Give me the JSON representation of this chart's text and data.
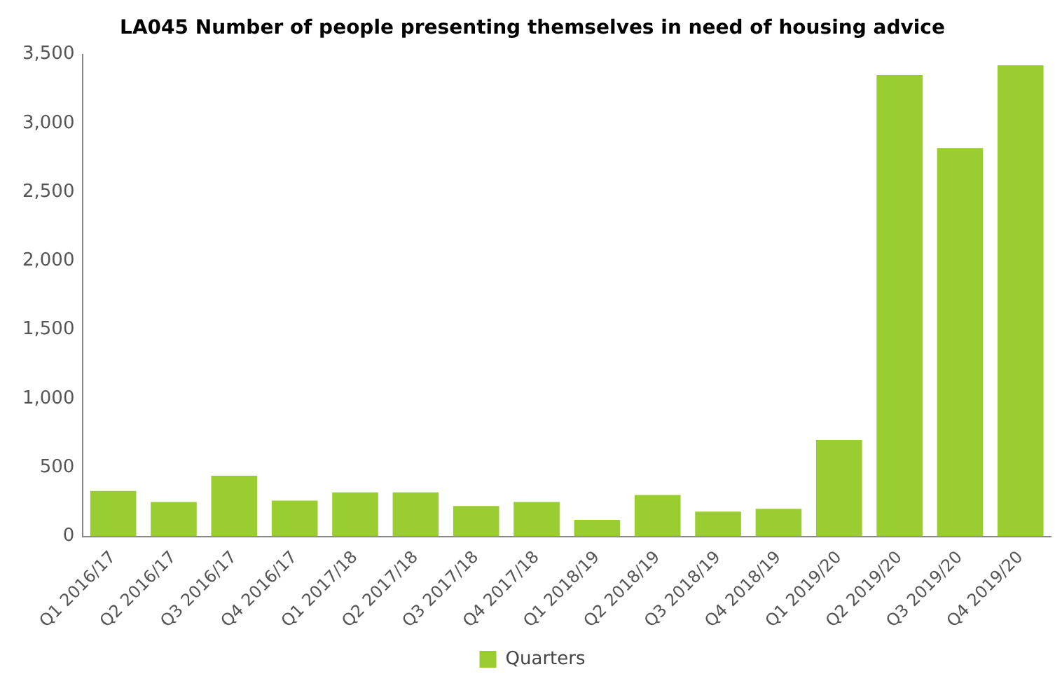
{
  "chart_data": {
    "type": "bar",
    "title": "LA045 Number of people presenting themselves in need of housing advice",
    "categories": [
      "Q1 2016/17",
      "Q2 2016/17",
      "Q3 2016/17",
      "Q4 2016/17",
      "Q1 2017/18",
      "Q2 2017/18",
      "Q3 2017/18",
      "Q4 2017/18",
      "Q1 2018/19",
      "Q2 2018/19",
      "Q3 2018/19",
      "Q4 2018/19",
      "Q1 2019/20",
      "Q2 2019/20",
      "Q3 2019/20",
      "Q4 2019/20"
    ],
    "series": [
      {
        "name": "Quarters",
        "color": "#9acd32",
        "values": [
          330,
          250,
          440,
          260,
          320,
          320,
          220,
          250,
          120,
          300,
          180,
          200,
          700,
          3350,
          2820,
          3420
        ]
      }
    ],
    "ylim": [
      0,
      3500
    ],
    "yticks": [
      0,
      {
        "value": 500,
        "label": "500"
      },
      {
        "value": 1000,
        "label": "1,000"
      },
      {
        "value": 1500,
        "label": "1,500"
      },
      {
        "value": 2000,
        "label": "2,000"
      },
      {
        "value": 2500,
        "label": "2,500"
      },
      {
        "value": 3000,
        "label": "3,000"
      },
      {
        "value": 3500,
        "label": "3,500"
      }
    ],
    "grid": false,
    "legend": "bottom"
  }
}
